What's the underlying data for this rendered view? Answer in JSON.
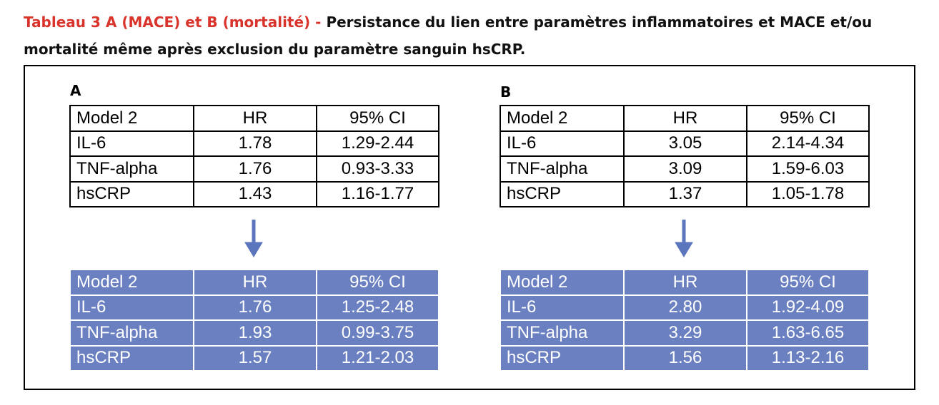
{
  "header": {
    "title_lead": "Tableau 3 A (MACE) et B (mortalité) -",
    "title_rest": "Persistance du lien entre paramètres inflammatoires et MACE et/ou mortalité même après exclusion du paramètre sanguin hsCRP."
  },
  "panels": [
    {
      "label": "A",
      "before": {
        "columns": [
          "Model 2",
          "HR",
          "95% CI"
        ],
        "rows": [
          [
            "IL-6",
            "1.78",
            "1.29-2.44"
          ],
          [
            "TNF-alpha",
            "1.76",
            "0.93-3.33"
          ],
          [
            "hsCRP",
            "1.43",
            "1.16-1.77"
          ]
        ]
      },
      "after": {
        "columns": [
          "Model 2",
          "HR",
          "95% CI"
        ],
        "rows": [
          [
            "IL-6",
            "1.76",
            "1.25-2.48"
          ],
          [
            "TNF-alpha",
            "1.93",
            "0.99-3.75"
          ],
          [
            "hsCRP",
            "1.57",
            "1.21-2.03"
          ]
        ]
      }
    },
    {
      "label": "B",
      "before": {
        "columns": [
          "Model 2",
          "HR",
          "95% CI"
        ],
        "rows": [
          [
            "IL-6",
            "3.05",
            "2.14-4.34"
          ],
          [
            "TNF-alpha",
            "3.09",
            "1.59-6.03"
          ],
          [
            "hsCRP",
            "1.37",
            "1.05-1.78"
          ]
        ]
      },
      "after": {
        "columns": [
          "Model 2",
          "HR",
          "95% CI"
        ],
        "rows": [
          [
            "IL-6",
            "2.80",
            "1.92-4.09"
          ],
          [
            "TNF-alpha",
            "3.29",
            "1.63-6.65"
          ],
          [
            "hsCRP",
            "1.56",
            "1.13-2.16"
          ]
        ]
      }
    }
  ]
}
